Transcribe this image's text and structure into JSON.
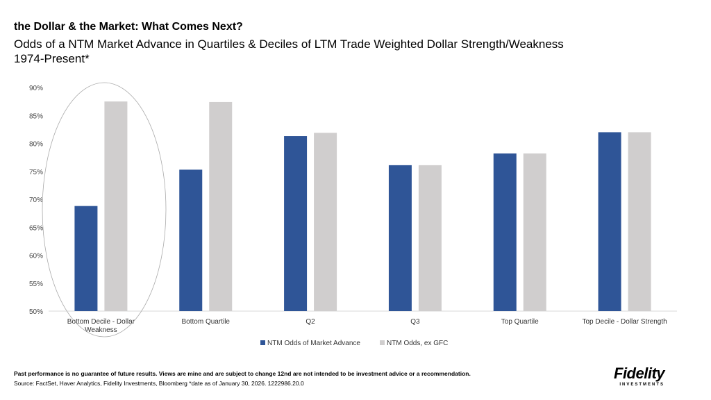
{
  "title": "the Dollar & the Market: What Comes Next?",
  "subtitle": "Odds of a NTM Market Advance in Quartiles & Deciles of LTM Trade Weighted Dollar Strength/Weakness",
  "subtitle2": "1974-Present*",
  "chart_data": {
    "type": "bar",
    "categories": [
      "Bottom Decile - Dollar Weakness",
      "Bottom Quartile",
      "Q2",
      "Q3",
      "Top Quartile",
      "Top Decile - Dollar Strength"
    ],
    "series": [
      {
        "name": "NTM Odds of Market Advance",
        "color": "#2F5597",
        "values": [
          68.8,
          75.3,
          81.3,
          76.1,
          78.2,
          82.0
        ]
      },
      {
        "name": "NTM Odds, ex GFC",
        "color": "#D0CECE",
        "values": [
          87.5,
          87.4,
          81.9,
          76.1,
          78.2,
          82.0
        ]
      }
    ],
    "ylim": [
      50,
      90
    ],
    "yticks": [
      "50%",
      "55%",
      "60%",
      "65%",
      "70%",
      "75%",
      "80%",
      "85%",
      "90%"
    ],
    "legend": "bottom",
    "annotation": "ellipse around Bottom Decile - Dollar Weakness"
  },
  "footer": {
    "disclaimer": "Past performance is no guarantee of future results. Views are mine and are subject to change 12nd are not intended to be investment advice or a recommendation.",
    "source": "Source: FactSet, Haver Analytics, Fidelity Investments, Bloomberg *date as of January 30, 2026. 1222986.20.0"
  },
  "logo": {
    "name": "Fidelity",
    "sub": "INVESTMENTS"
  }
}
